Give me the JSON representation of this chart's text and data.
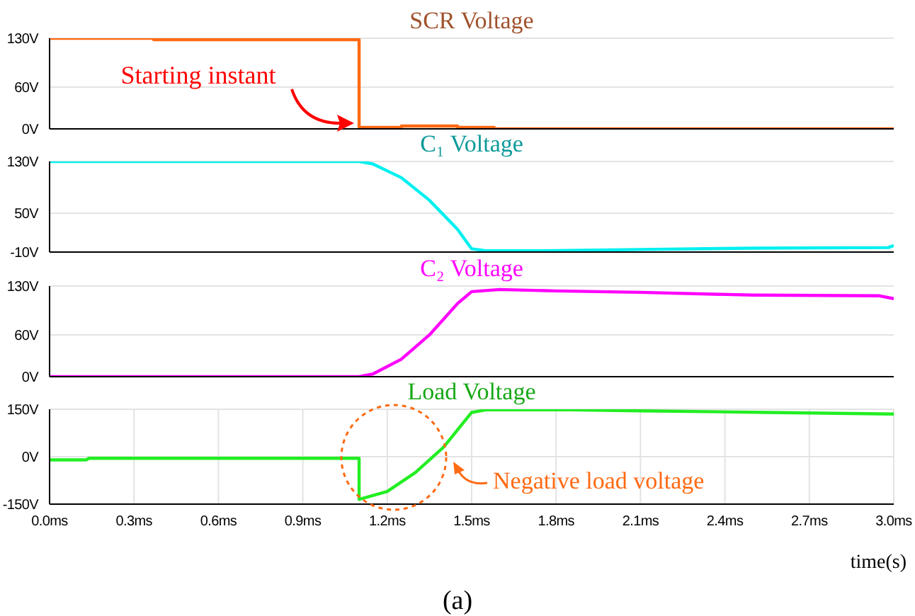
{
  "chart_data": [
    {
      "type": "line",
      "title": "SCR Voltage",
      "x": [
        0,
        0.37,
        0.37,
        1.1,
        1.1,
        1.25,
        1.25,
        1.45,
        1.45,
        1.58,
        1.58,
        3.0
      ],
      "series": [
        {
          "color": "#ff6a13",
          "values": [
            130,
            130,
            128,
            128,
            2,
            2,
            4,
            4,
            2,
            2,
            0,
            0
          ]
        }
      ],
      "xlim": [
        0,
        3
      ],
      "xticks": [
        {
          "value": 0,
          "label": null
        },
        {
          "value": 0.3,
          "label": null
        },
        {
          "value": 0.6,
          "label": null
        },
        {
          "value": 0.9,
          "label": null
        },
        {
          "value": 1.2,
          "label": null
        },
        {
          "value": 1.5,
          "label": null
        },
        {
          "value": 1.8,
          "label": null
        },
        {
          "value": 2.1,
          "label": null
        },
        {
          "value": 2.4,
          "label": null
        },
        {
          "value": 2.7,
          "label": null
        },
        {
          "value": 3.0,
          "label": null
        }
      ],
      "ylim": [
        0,
        130
      ],
      "yticks": [
        {
          "value": 0,
          "label": "0V"
        },
        {
          "value": 60,
          "label": "60V"
        },
        {
          "value": 130,
          "label": "130V"
        }
      ],
      "grid": true,
      "tick_labels": "y",
      "annotations": [
        "Starting instant"
      ]
    },
    {
      "type": "line",
      "title": "C₁ Voltage",
      "x": [
        0,
        1.1,
        1.15,
        1.25,
        1.35,
        1.45,
        1.5,
        1.55,
        1.75,
        2.1,
        2.5,
        2.98,
        3.0
      ],
      "series": [
        {
          "color": "#00f0f0",
          "values": [
            130,
            130,
            126,
            105,
            70,
            25,
            -5,
            -8,
            -8,
            -6,
            -4,
            -3,
            0
          ]
        }
      ],
      "xlim": [
        0,
        3
      ],
      "xticks": [
        {
          "value": 0,
          "label": null
        },
        {
          "value": 0.3,
          "label": null
        },
        {
          "value": 0.6,
          "label": null
        },
        {
          "value": 0.9,
          "label": null
        },
        {
          "value": 1.2,
          "label": null
        },
        {
          "value": 1.5,
          "label": null
        },
        {
          "value": 1.8,
          "label": null
        },
        {
          "value": 2.1,
          "label": null
        },
        {
          "value": 2.4,
          "label": null
        },
        {
          "value": 2.7,
          "label": null
        },
        {
          "value": 3.0,
          "label": null
        }
      ],
      "ylim": [
        -10,
        130
      ],
      "yticks": [
        {
          "value": -10,
          "label": "-10V"
        },
        {
          "value": 50,
          "label": "50V"
        },
        {
          "value": 130,
          "label": "130V"
        }
      ],
      "grid": true,
      "tick_labels": "y"
    },
    {
      "type": "line",
      "title": "C₂ Voltage",
      "x": [
        0,
        1.1,
        1.15,
        1.25,
        1.35,
        1.45,
        1.5,
        1.6,
        1.8,
        2.1,
        2.5,
        2.95,
        3.0
      ],
      "series": [
        {
          "color": "#ff00ff",
          "values": [
            0,
            0,
            4,
            25,
            60,
            105,
            122,
            125,
            123,
            121,
            117,
            116,
            112
          ]
        }
      ],
      "xlim": [
        0,
        3
      ],
      "xticks": [
        {
          "value": 0,
          "label": null
        },
        {
          "value": 0.3,
          "label": null
        },
        {
          "value": 0.6,
          "label": null
        },
        {
          "value": 0.9,
          "label": null
        },
        {
          "value": 1.2,
          "label": null
        },
        {
          "value": 1.5,
          "label": null
        },
        {
          "value": 1.8,
          "label": null
        },
        {
          "value": 2.1,
          "label": null
        },
        {
          "value": 2.4,
          "label": null
        },
        {
          "value": 2.7,
          "label": null
        },
        {
          "value": 3.0,
          "label": null
        }
      ],
      "ylim": [
        0,
        130
      ],
      "yticks": [
        {
          "value": 0,
          "label": "0V"
        },
        {
          "value": 60,
          "label": "60V"
        },
        {
          "value": 130,
          "label": "130V"
        }
      ],
      "grid": true,
      "tick_labels": "y"
    },
    {
      "type": "line",
      "title": "Load Voltage",
      "xlabel": "time(s)",
      "x": [
        0,
        0.13,
        0.14,
        1.1,
        1.1,
        1.2,
        1.3,
        1.4,
        1.5,
        1.55,
        1.85,
        2.1,
        2.55,
        3.0
      ],
      "series": [
        {
          "color": "#22ee22",
          "values": [
            -10,
            -10,
            -5,
            -5,
            -135,
            -110,
            -50,
            30,
            140,
            148,
            148,
            145,
            140,
            135
          ]
        }
      ],
      "xlim": [
        0,
        3
      ],
      "xticks": [
        {
          "value": 0,
          "label": "0.0ms"
        },
        {
          "value": 0.3,
          "label": "0.3ms"
        },
        {
          "value": 0.6,
          "label": "0.6ms"
        },
        {
          "value": 0.9,
          "label": "0.9ms"
        },
        {
          "value": 1.2,
          "label": "1.2ms"
        },
        {
          "value": 1.5,
          "label": "1.5ms"
        },
        {
          "value": 1.8,
          "label": "1.8ms"
        },
        {
          "value": 2.1,
          "label": "2.1ms"
        },
        {
          "value": 2.4,
          "label": "2.4ms"
        },
        {
          "value": 2.7,
          "label": "2.7ms"
        },
        {
          "value": 3.0,
          "label": "3.0ms"
        }
      ],
      "ylim": [
        -150,
        150
      ],
      "yticks": [
        {
          "value": -150,
          "label": "-150V"
        },
        {
          "value": 0,
          "label": "0V"
        },
        {
          "value": 150,
          "label": "150V"
        }
      ],
      "grid": true,
      "annotations": [
        "Negative load voltage",
        "(a)"
      ]
    }
  ]
}
